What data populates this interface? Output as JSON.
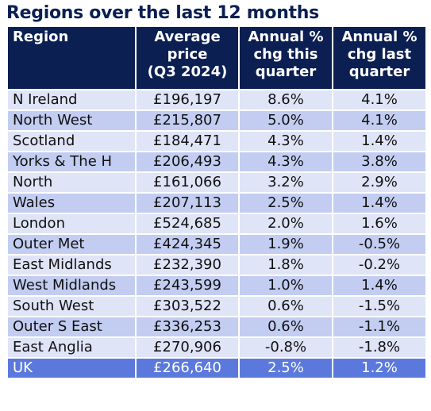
{
  "title": "Regions over the last 12 months",
  "columns": [
    "Region",
    "Average\nprice\n(Q3 2024)",
    "Annual %\nchg this\nquarter",
    "Annual %\nchg last\nquarter"
  ],
  "rows": [
    [
      "N Ireland",
      "£196,197",
      "8.6%",
      "4.1%"
    ],
    [
      "North West",
      "£215,807",
      "5.0%",
      "4.1%"
    ],
    [
      "Scotland",
      "£184,471",
      "4.3%",
      "1.4%"
    ],
    [
      "Yorks & The H",
      "£206,493",
      "4.3%",
      "3.8%"
    ],
    [
      "North",
      "£161,066",
      "3.2%",
      "2.9%"
    ],
    [
      "Wales",
      "£207,113",
      "2.5%",
      "1.4%"
    ],
    [
      "London",
      "£524,685",
      "2.0%",
      "1.6%"
    ],
    [
      "Outer Met",
      "£424,345",
      "1.9%",
      "-0.5%"
    ],
    [
      "East Midlands",
      "£232,390",
      "1.8%",
      "-0.2%"
    ],
    [
      "West Midlands",
      "£243,599",
      "1.0%",
      "1.4%"
    ],
    [
      "South West",
      "£303,522",
      "0.6%",
      "-1.5%"
    ],
    [
      "Outer S East",
      "£336,253",
      "0.6%",
      "-1.1%"
    ],
    [
      "East Anglia",
      "£270,906",
      "-0.8%",
      "-1.8%"
    ]
  ],
  "total": [
    "UK",
    "£266,640",
    "2.5%",
    "1.2%"
  ],
  "colors": {
    "header": "#0b1f52",
    "row_light": "#dfe4f7",
    "row_dark": "#c2cdf1",
    "total_row": "#5b79dd"
  }
}
